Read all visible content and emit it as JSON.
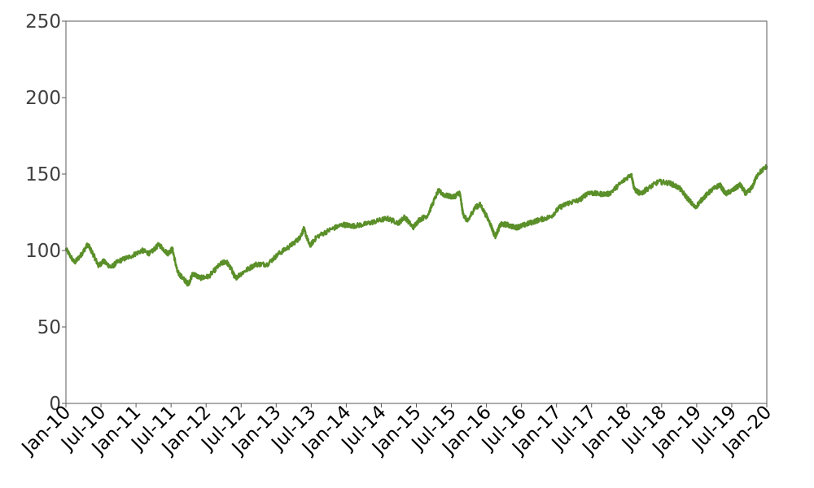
{
  "chart_data": {
    "type": "line",
    "title": "",
    "xlabel": "",
    "ylabel": "",
    "ylim": [
      0,
      250
    ],
    "xlim": [
      "2010-01-01",
      "2020-01-01"
    ],
    "y_ticks": [
      "0",
      "50",
      "100",
      "150",
      "200",
      "250"
    ],
    "x_ticks": [
      "Jan-10",
      "Jul-10",
      "Jan-11",
      "Jul-11",
      "Jan-12",
      "Jul-12",
      "Jan-13",
      "Jul-13",
      "Jan-14",
      "Jul-14",
      "Jan-15",
      "Jul-15",
      "Jan-16",
      "Jul-16",
      "Jan-17",
      "Jul-17",
      "Jan-18",
      "Jul-18",
      "Jan-19",
      "Jul-19",
      "Jan-20"
    ],
    "grid": false,
    "legend": "none",
    "series": [
      {
        "color": "#5a8f29",
        "points": [
          [
            "2010-01-01",
            101
          ],
          [
            "2010-02-15",
            92
          ],
          [
            "2010-03-20",
            97
          ],
          [
            "2010-04-25",
            104
          ],
          [
            "2010-05-25",
            97
          ],
          [
            "2010-06-20",
            90
          ],
          [
            "2010-07-15",
            93
          ],
          [
            "2010-08-25",
            89
          ],
          [
            "2010-10-01",
            93
          ],
          [
            "2010-12-01",
            96
          ],
          [
            "2011-02-01",
            100
          ],
          [
            "2011-03-15",
            98
          ],
          [
            "2011-05-01",
            104
          ],
          [
            "2011-06-15",
            98
          ],
          [
            "2011-07-10",
            101
          ],
          [
            "2011-08-05",
            86
          ],
          [
            "2011-09-01",
            82
          ],
          [
            "2011-10-01",
            78
          ],
          [
            "2011-10-25",
            85
          ],
          [
            "2011-12-01",
            82
          ],
          [
            "2012-01-15",
            83
          ],
          [
            "2012-03-15",
            91
          ],
          [
            "2012-04-15",
            93
          ],
          [
            "2012-05-15",
            87
          ],
          [
            "2012-06-01",
            82
          ],
          [
            "2012-07-15",
            86
          ],
          [
            "2012-09-15",
            91
          ],
          [
            "2012-11-15",
            91
          ],
          [
            "2013-01-15",
            98
          ],
          [
            "2013-03-15",
            103
          ],
          [
            "2013-05-01",
            108
          ],
          [
            "2013-05-25",
            114
          ],
          [
            "2013-06-25",
            103
          ],
          [
            "2013-08-01",
            109
          ],
          [
            "2013-10-15",
            114
          ],
          [
            "2013-12-15",
            117
          ],
          [
            "2014-02-01",
            116
          ],
          [
            "2014-04-01",
            117
          ],
          [
            "2014-06-01",
            119
          ],
          [
            "2014-08-01",
            121
          ],
          [
            "2014-10-01",
            118
          ],
          [
            "2014-11-01",
            122
          ],
          [
            "2014-12-15",
            115
          ],
          [
            "2015-01-15",
            120
          ],
          [
            "2015-03-01",
            123
          ],
          [
            "2015-04-25",
            139
          ],
          [
            "2015-06-01",
            136
          ],
          [
            "2015-07-15",
            135
          ],
          [
            "2015-08-15",
            138
          ],
          [
            "2015-09-01",
            124
          ],
          [
            "2015-09-25",
            119
          ],
          [
            "2015-11-01",
            128
          ],
          [
            "2015-12-01",
            130
          ],
          [
            "2016-01-20",
            118
          ],
          [
            "2016-02-15",
            109
          ],
          [
            "2016-03-15",
            117
          ],
          [
            "2016-04-15",
            117
          ],
          [
            "2016-06-01",
            115
          ],
          [
            "2016-07-01",
            116
          ],
          [
            "2016-08-15",
            118
          ],
          [
            "2016-10-01",
            120
          ],
          [
            "2016-12-01",
            122
          ],
          [
            "2017-01-15",
            128
          ],
          [
            "2017-03-01",
            131
          ],
          [
            "2017-05-01",
            133
          ],
          [
            "2017-06-15",
            138
          ],
          [
            "2017-08-01",
            137
          ],
          [
            "2017-10-01",
            137
          ],
          [
            "2017-12-01",
            144
          ],
          [
            "2018-01-25",
            150
          ],
          [
            "2018-02-10",
            140
          ],
          [
            "2018-03-15",
            137
          ],
          [
            "2018-04-15",
            140
          ],
          [
            "2018-06-15",
            145
          ],
          [
            "2018-08-15",
            144
          ],
          [
            "2018-10-01",
            141
          ],
          [
            "2018-11-15",
            134
          ],
          [
            "2018-12-24",
            128
          ],
          [
            "2019-02-01",
            134
          ],
          [
            "2019-03-15",
            139
          ],
          [
            "2019-05-01",
            143
          ],
          [
            "2019-06-01",
            137
          ],
          [
            "2019-07-15",
            140
          ],
          [
            "2019-08-15",
            143
          ],
          [
            "2019-09-15",
            137
          ],
          [
            "2019-10-15",
            141
          ],
          [
            "2019-11-15",
            150
          ],
          [
            "2020-01-01",
            155
          ]
        ]
      }
    ]
  }
}
